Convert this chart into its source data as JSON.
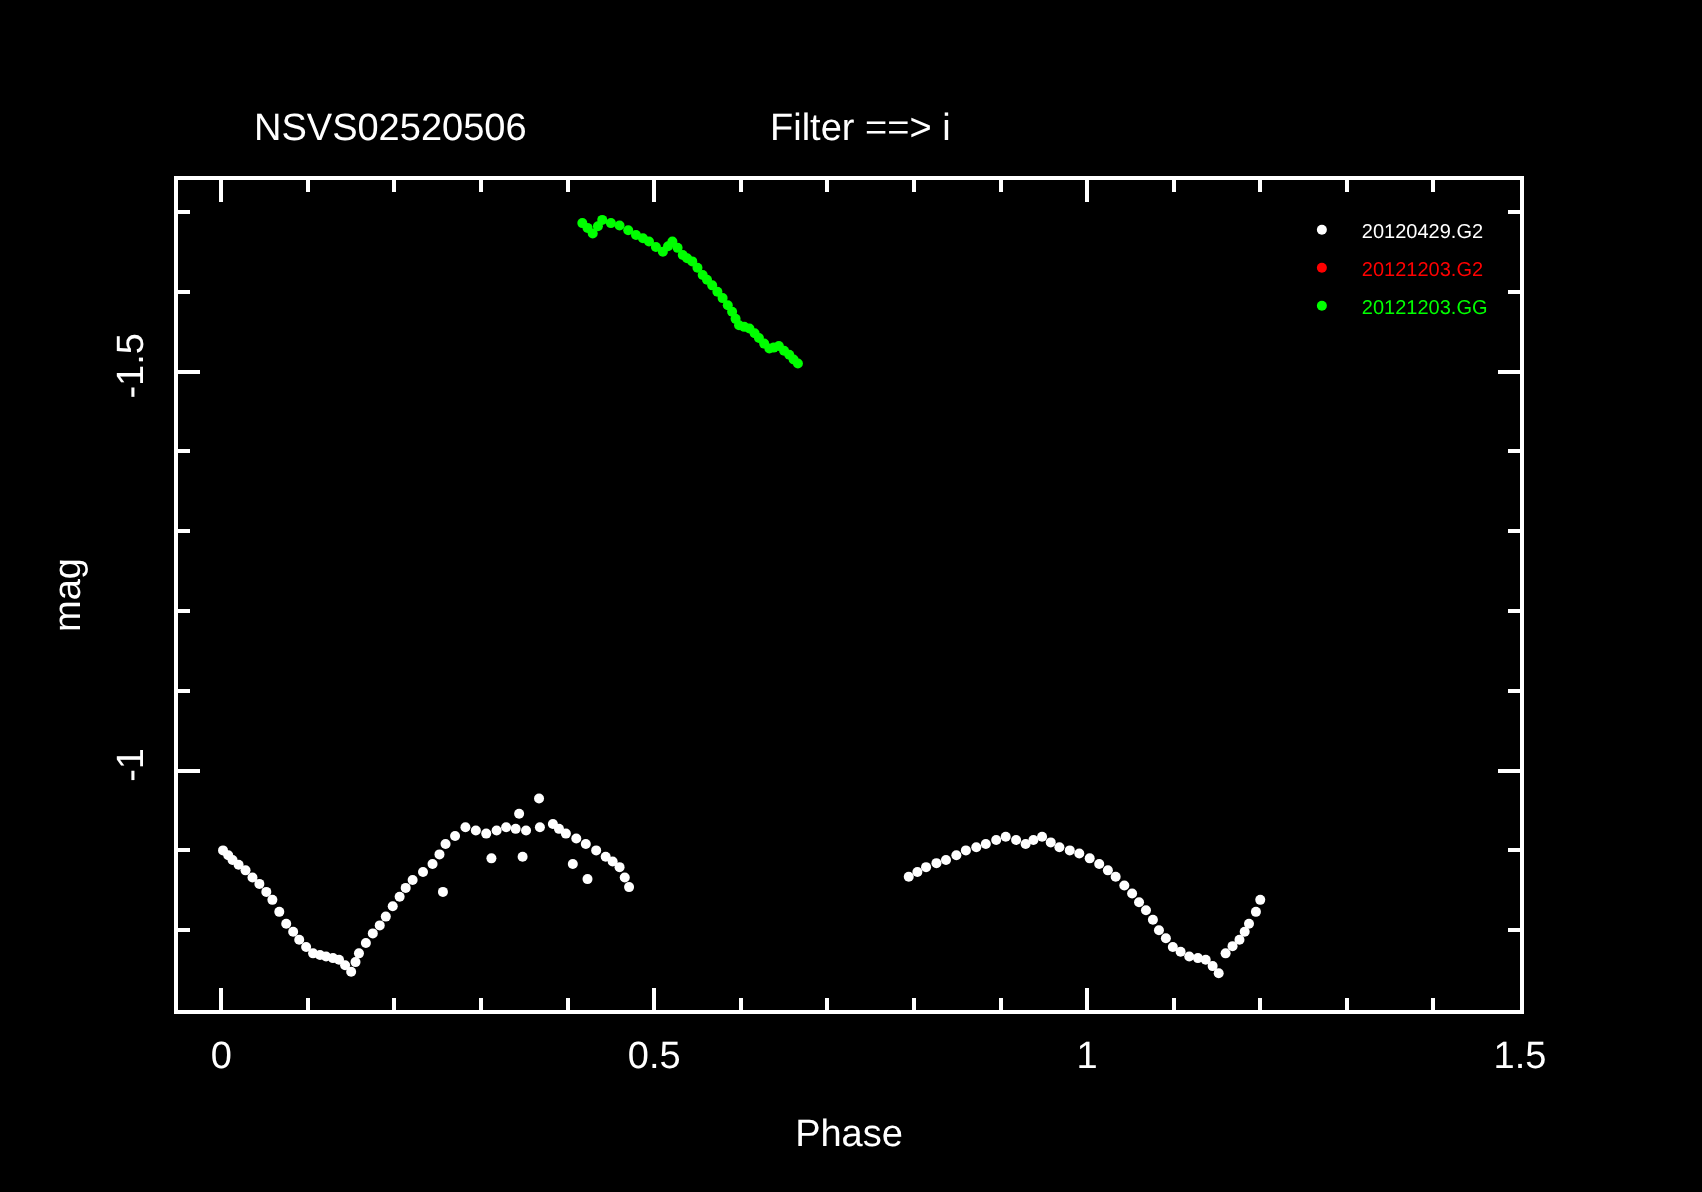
{
  "chart_data": {
    "type": "scatter",
    "title": "NSVS02520506",
    "subtitle": "Filter ==> i",
    "xlabel": "Phase",
    "ylabel": "mag",
    "xlim": [
      -0.05,
      1.5
    ],
    "ylim": [
      -0.7,
      -1.74
    ],
    "xticks": [
      0,
      {
        "value": 0.1,
        "label": null
      },
      {
        "value": 0.2,
        "label": null
      },
      {
        "value": 0.3,
        "label": null
      },
      {
        "value": 0.4,
        "label": null
      },
      0.5,
      {
        "value": 0.6,
        "label": null
      },
      {
        "value": 0.7,
        "label": null
      },
      {
        "value": 0.8,
        "label": null
      },
      {
        "value": 0.9,
        "label": null
      },
      1,
      {
        "value": 1.1,
        "label": null
      },
      {
        "value": 1.2,
        "label": null
      },
      {
        "value": 1.3,
        "label": null
      },
      {
        "value": 1.4,
        "label": null
      },
      1.5
    ],
    "yticks": [
      {
        "value": -1.7,
        "label": null
      },
      {
        "value": -1.6,
        "label": null
      },
      -1.5,
      {
        "value": -1.4,
        "label": null
      },
      {
        "value": -1.3,
        "label": null
      },
      {
        "value": -1.2,
        "label": null
      },
      {
        "value": -1.1,
        "label": null
      },
      -1,
      {
        "value": -0.9,
        "label": null
      },
      {
        "value": -0.8,
        "label": null
      }
    ],
    "legend": "top right",
    "marker": "circle",
    "series": [
      {
        "name": "20120429.G2",
        "color": "#ffffff",
        "x": [
          0.002,
          0.008,
          0.013,
          0.02,
          0.028,
          0.036,
          0.044,
          0.052,
          0.059,
          0.067,
          0.075,
          0.083,
          0.09,
          0.098,
          0.106,
          0.114,
          0.121,
          0.129,
          0.136,
          0.143,
          0.15,
          0.155,
          0.159,
          0.167,
          0.175,
          0.183,
          0.19,
          0.198,
          0.206,
          0.213,
          0.221,
          0.233,
          0.244,
          0.252,
          0.259,
          0.27,
          0.282,
          0.294,
          0.306,
          0.318,
          0.329,
          0.34,
          0.352,
          0.368,
          0.383,
          0.39,
          0.398,
          0.41,
          0.421,
          0.433,
          0.444,
          0.452,
          0.46,
          0.466,
          0.471,
          0.367,
          0.256,
          0.348,
          0.406,
          0.423,
          0.312,
          0.344,
          0.794,
          0.804,
          0.814,
          0.826,
          0.837,
          0.849,
          0.86,
          0.872,
          0.883,
          0.895,
          0.906,
          0.918,
          0.929,
          0.938,
          0.948,
          0.958,
          0.968,
          0.98,
          0.991,
          1.003,
          1.014,
          1.024,
          1.033,
          1.043,
          1.052,
          1.06,
          1.068,
          1.076,
          1.083,
          1.091,
          1.099,
          1.108,
          1.118,
          1.128,
          1.137,
          1.145,
          1.152,
          1.16,
          1.168,
          1.176,
          1.182,
          1.187,
          1.195,
          1.2
        ],
        "values": [
          -0.9,
          -0.894,
          -0.888,
          -0.882,
          -0.875,
          -0.866,
          -0.858,
          -0.848,
          -0.838,
          -0.823,
          -0.808,
          -0.798,
          -0.788,
          -0.779,
          -0.771,
          -0.769,
          -0.767,
          -0.765,
          -0.763,
          -0.756,
          -0.748,
          -0.76,
          -0.771,
          -0.784,
          -0.796,
          -0.806,
          -0.817,
          -0.83,
          -0.842,
          -0.853,
          -0.863,
          -0.873,
          -0.883,
          -0.895,
          -0.908,
          -0.918,
          -0.929,
          -0.925,
          -0.921,
          -0.925,
          -0.929,
          -0.927,
          -0.925,
          -0.929,
          -0.933,
          -0.927,
          -0.921,
          -0.915,
          -0.908,
          -0.9,
          -0.892,
          -0.886,
          -0.879,
          -0.866,
          -0.854,
          -0.965,
          -0.848,
          -0.892,
          -0.883,
          -0.864,
          -0.89,
          -0.946,
          -0.867,
          -0.873,
          -0.879,
          -0.884,
          -0.888,
          -0.894,
          -0.9,
          -0.904,
          -0.908,
          -0.913,
          -0.917,
          -0.913,
          -0.908,
          -0.913,
          -0.917,
          -0.91,
          -0.904,
          -0.9,
          -0.896,
          -0.89,
          -0.883,
          -0.875,
          -0.867,
          -0.856,
          -0.846,
          -0.835,
          -0.825,
          -0.813,
          -0.8,
          -0.79,
          -0.779,
          -0.773,
          -0.767,
          -0.765,
          -0.763,
          -0.755,
          -0.746,
          -0.771,
          -0.78,
          -0.788,
          -0.798,
          -0.808,
          -0.823,
          -0.838
        ]
      },
      {
        "name": "20121203.G2",
        "color": "#ff0000"
      },
      {
        "name": "20121203.GG",
        "color": "#00ff00",
        "x": [
          0.417,
          0.423,
          0.429,
          0.435,
          0.44,
          0.45,
          0.46,
          0.47,
          0.479,
          0.487,
          0.494,
          0.502,
          0.51,
          0.516,
          0.521,
          0.527,
          0.533,
          0.538,
          0.544,
          0.55,
          0.556,
          0.561,
          0.567,
          0.573,
          0.579,
          0.585,
          0.59,
          0.594,
          0.598,
          0.604,
          0.61,
          0.616,
          0.621,
          0.627,
          0.633,
          0.638,
          0.644,
          0.65,
          0.656,
          0.661,
          0.666
        ],
        "values": [
          -1.686,
          -1.68,
          -1.673,
          -1.682,
          -1.69,
          -1.686,
          -1.683,
          -1.677,
          -1.671,
          -1.667,
          -1.663,
          -1.656,
          -1.65,
          -1.657,
          -1.663,
          -1.655,
          -1.646,
          -1.642,
          -1.638,
          -1.63,
          -1.621,
          -1.615,
          -1.608,
          -1.6,
          -1.592,
          -1.583,
          -1.575,
          -1.566,
          -1.558,
          -1.556,
          -1.554,
          -1.548,
          -1.542,
          -1.535,
          -1.529,
          -1.53,
          -1.532,
          -1.526,
          -1.521,
          -1.515,
          -1.51
        ]
      }
    ]
  }
}
